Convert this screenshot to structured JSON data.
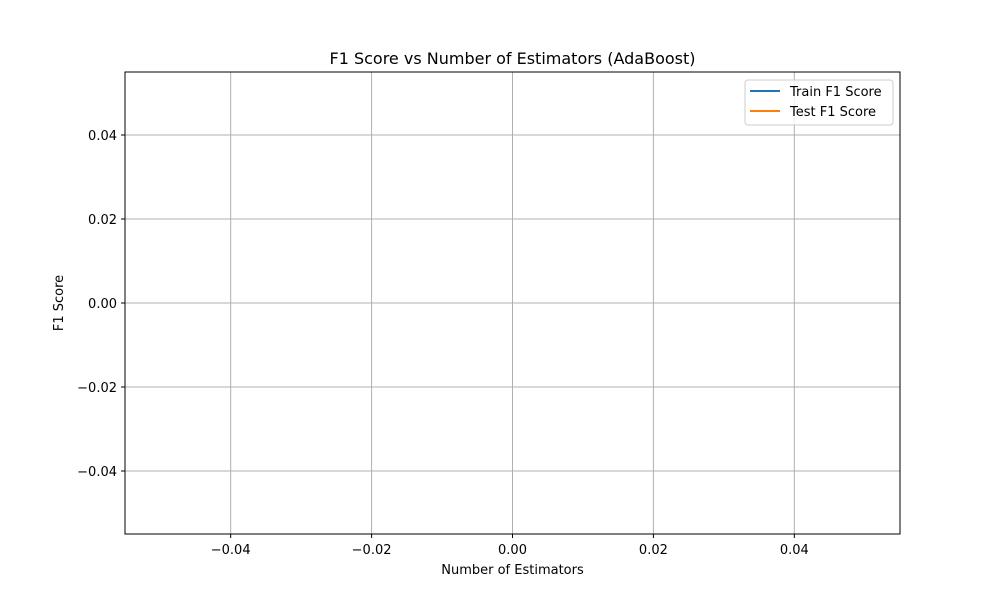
{
  "chart_data": {
    "type": "line",
    "title": "F1 Score vs Number of Estimators (AdaBoost)",
    "xlabel": "Number of Estimators",
    "ylabel": "F1 Score",
    "xlim": [
      -0.055,
      0.055
    ],
    "ylim": [
      -0.055,
      0.055
    ],
    "x_ticks": [
      -0.04,
      -0.02,
      0.0,
      0.02,
      0.04
    ],
    "y_ticks": [
      -0.04,
      -0.02,
      0.0,
      0.02,
      0.04
    ],
    "x_tick_labels": [
      "−0.04",
      "−0.02",
      "0.00",
      "0.02",
      "0.04"
    ],
    "y_tick_labels": [
      "−0.04",
      "−0.02",
      "0.00",
      "0.02",
      "0.04"
    ],
    "grid": true,
    "legend_position": "upper right",
    "x": [],
    "series": [
      {
        "name": "Train F1 Score",
        "color": "#1f77b4",
        "values": []
      },
      {
        "name": "Test F1 Score",
        "color": "#ff7f0e",
        "values": []
      }
    ]
  }
}
